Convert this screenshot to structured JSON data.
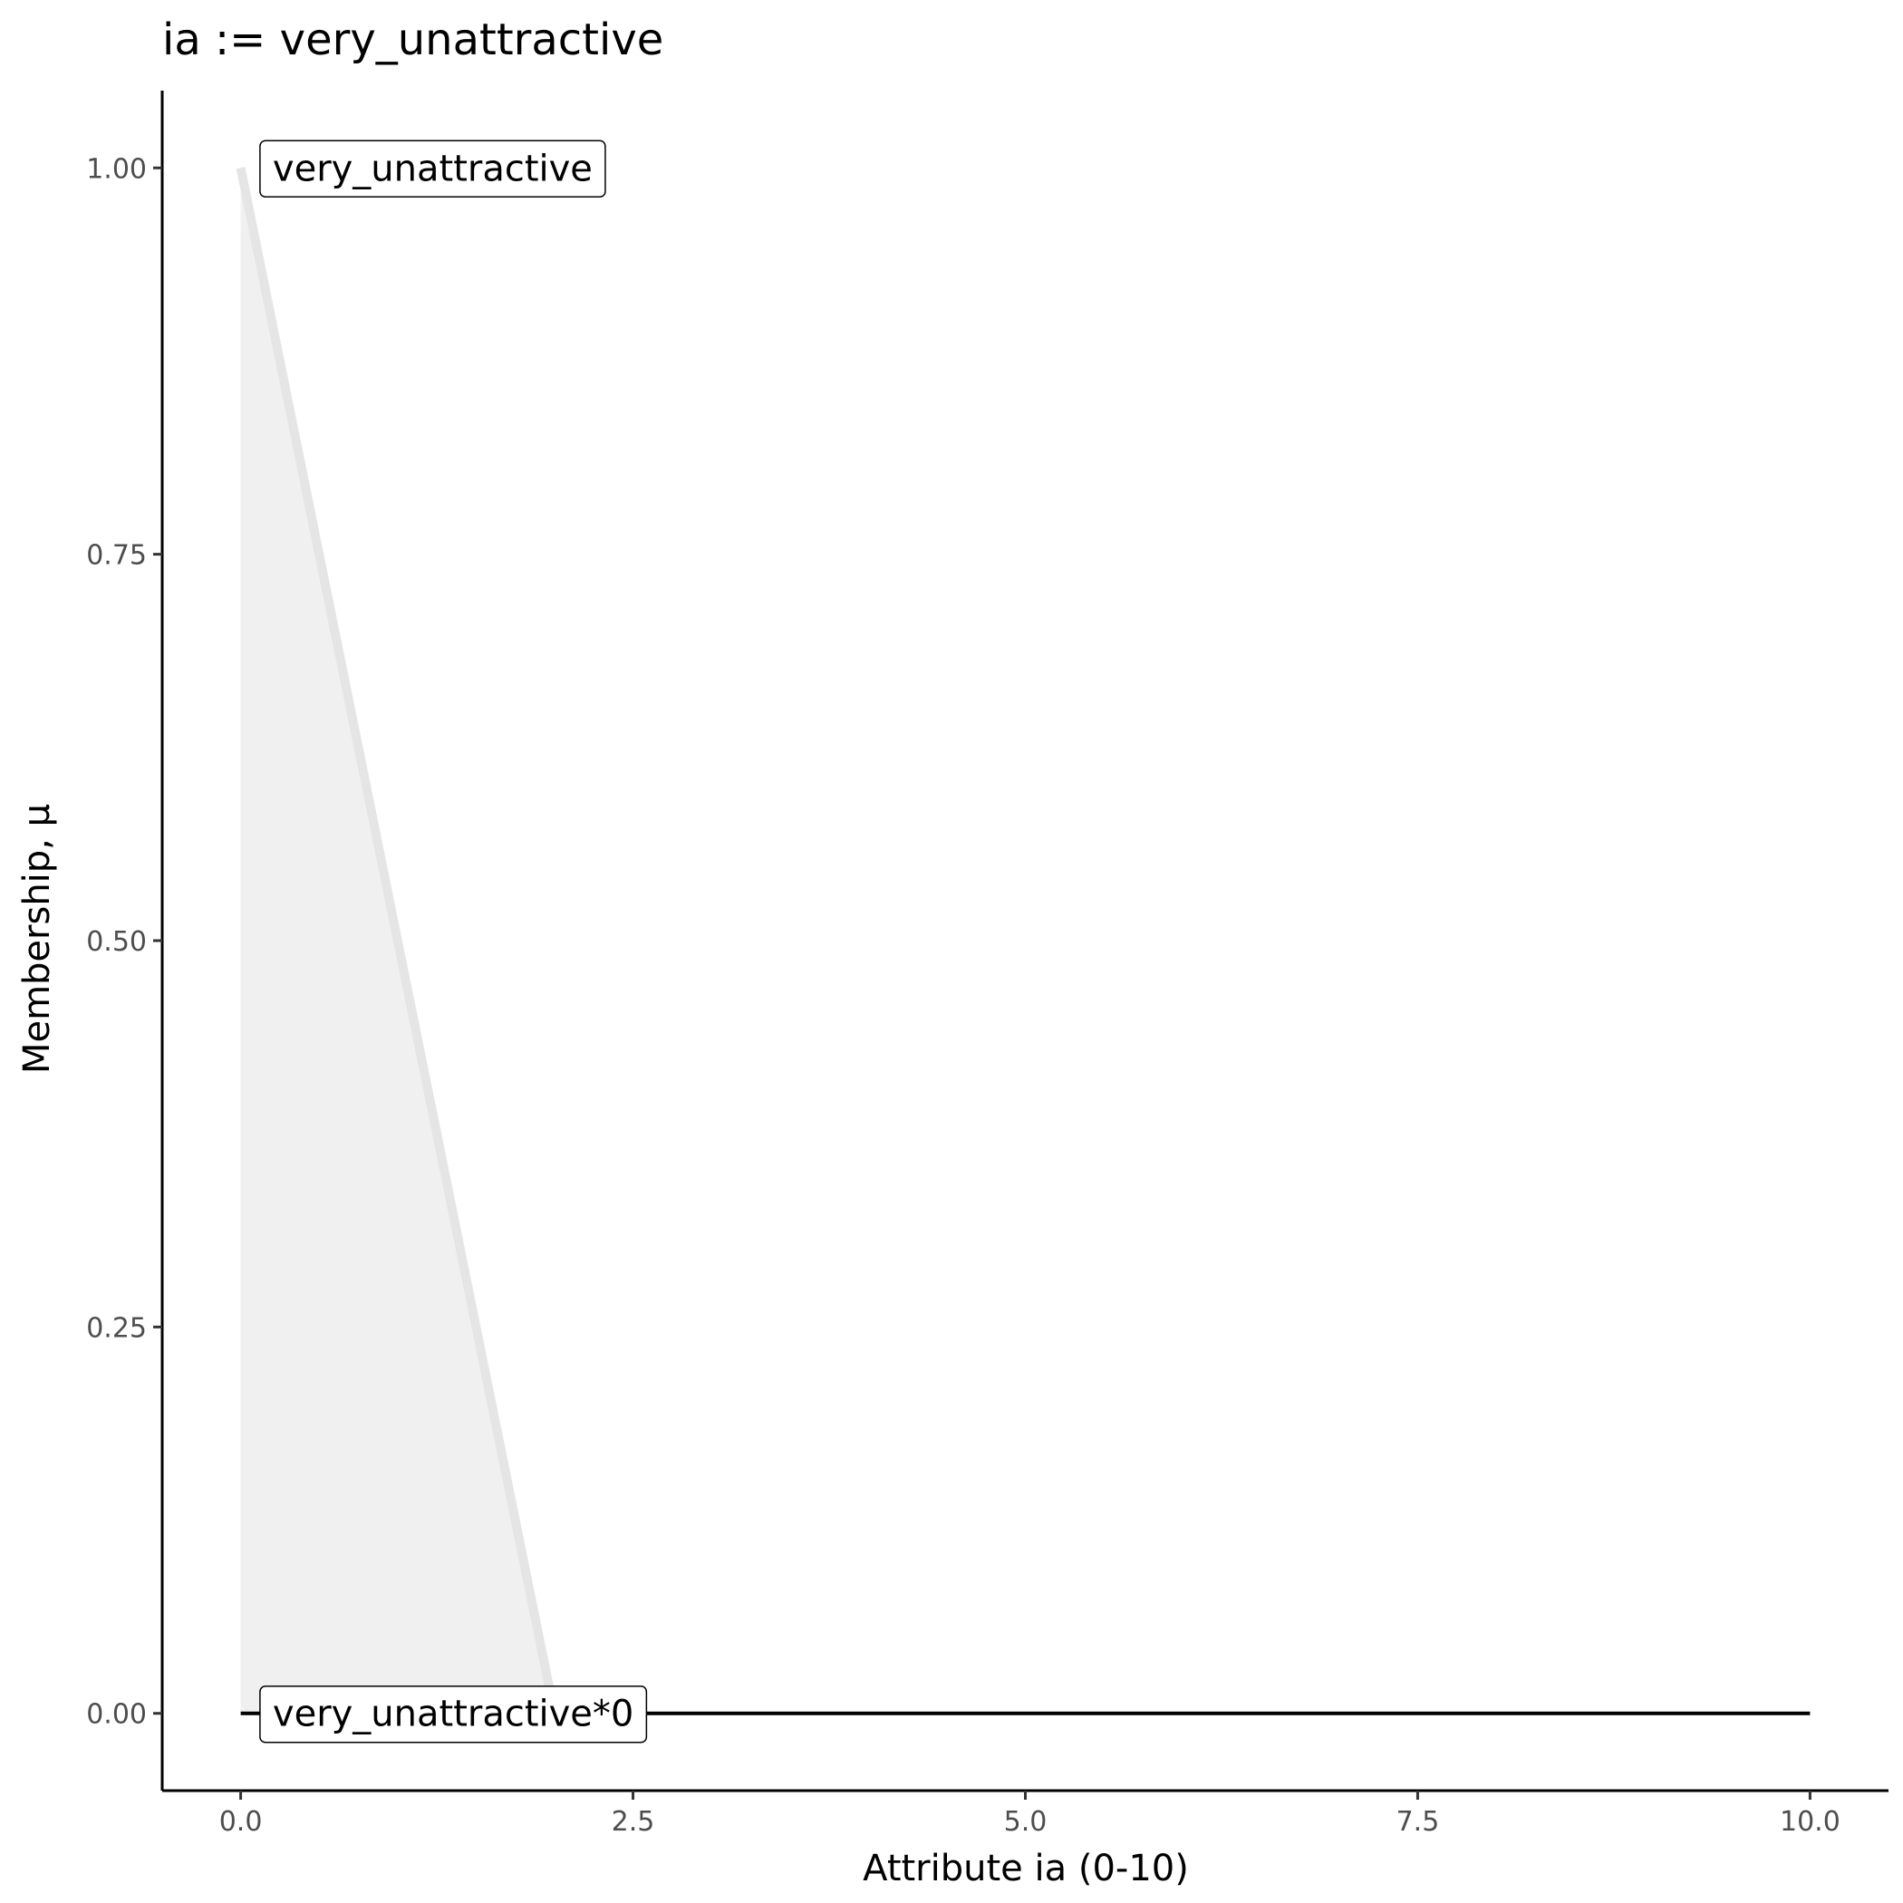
{
  "chart_data": {
    "type": "line",
    "title": "ia := very_unattractive",
    "xlabel": "Attribute ia (0-10)",
    "ylabel": "Membership, μ",
    "xlim": [
      -0.5,
      10.5
    ],
    "ylim": [
      -0.05,
      1.05
    ],
    "xticks": [
      0,
      2.5,
      5,
      7.5,
      10
    ],
    "xtick_labels": [
      "0.0",
      "2.5",
      "5.0",
      "7.5",
      "10.0"
    ],
    "yticks": [
      0,
      0.25,
      0.5,
      0.75,
      1
    ],
    "ytick_labels": [
      "0.00",
      "0.25",
      "0.50",
      "0.75",
      "1.00"
    ],
    "grid": false,
    "series": [
      {
        "name": "very_unattractive",
        "x": [
          0,
          2
        ],
        "y": [
          1,
          0
        ],
        "color": "#e5e5e5",
        "fill": "#f0f0f0"
      },
      {
        "name": "very_unattractive*0",
        "x": [
          0,
          10
        ],
        "y": [
          0,
          0
        ],
        "color": "#000000"
      }
    ],
    "annotations": [
      {
        "text": "very_unattractive",
        "x": 0.1,
        "y": 1
      },
      {
        "text": "very_unattractive*0",
        "x": 0.1,
        "y": 0
      }
    ]
  }
}
